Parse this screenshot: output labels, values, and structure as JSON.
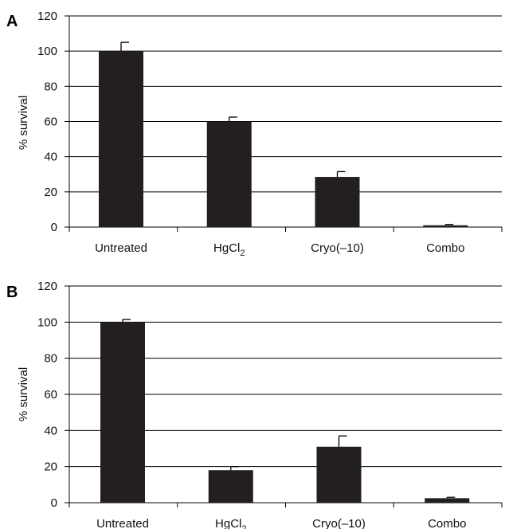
{
  "chart_data": [
    {
      "panel_label": "A",
      "type": "bar",
      "ylabel": "% survival",
      "xlabel": "",
      "ylim": [
        0,
        120
      ],
      "yticks": [
        "0",
        "20",
        "40",
        "60",
        "80",
        "100",
        "120"
      ],
      "grid": true,
      "categories": [
        {
          "text": "Untreated",
          "sub": ""
        },
        {
          "text": "HgCl",
          "sub": "2"
        },
        {
          "text": "Cryo(–10)",
          "sub": ""
        },
        {
          "text": "Combo",
          "sub": ""
        }
      ],
      "values": [
        100,
        60,
        28.5,
        1
      ],
      "errors": [
        5,
        2.5,
        3,
        0.5
      ],
      "bar_color": "#231f20"
    },
    {
      "panel_label": "B",
      "type": "bar",
      "ylabel": "% survival",
      "xlabel": "",
      "ylim": [
        0,
        120
      ],
      "yticks": [
        "0",
        "20",
        "40",
        "60",
        "80",
        "100",
        "120"
      ],
      "grid": true,
      "categories": [
        {
          "text": "Untreated",
          "sub": ""
        },
        {
          "text": "HgCl",
          "sub": "2"
        },
        {
          "text": "Cryo(–10)",
          "sub": ""
        },
        {
          "text": "Combo",
          "sub": ""
        }
      ],
      "values": [
        100,
        18,
        31,
        2.5
      ],
      "errors": [
        1.5,
        2,
        6,
        0.5
      ],
      "bar_color": "#231f20"
    }
  ]
}
